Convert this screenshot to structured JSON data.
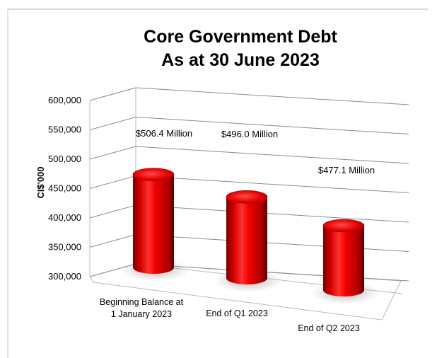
{
  "chart_data": {
    "type": "bar",
    "style": "3d-cylinder",
    "title": [
      "Core Government Debt",
      "As at 30 June 2023"
    ],
    "ylabel": "CI$'000",
    "xlabel": "",
    "ylim": [
      300000,
      600000
    ],
    "yticks": [
      300000,
      350000,
      400000,
      450000,
      500000,
      550000,
      600000
    ],
    "ytick_labels": [
      "300,000",
      "350,000",
      "400,000",
      "450,000",
      "500,000",
      "550,000",
      "600,000"
    ],
    "categories": [
      [
        "Beginning Balance at",
        "1 January 2023"
      ],
      [
        "End of Q1 2023"
      ],
      [
        "End of Q2 2023"
      ]
    ],
    "values": [
      506400,
      496000,
      477100
    ],
    "data_labels": [
      "$506.4 Million",
      "$496.0 Million",
      "$477.1 Million"
    ],
    "bar_color": "#e8000a",
    "grid": true,
    "legend": "none"
  }
}
